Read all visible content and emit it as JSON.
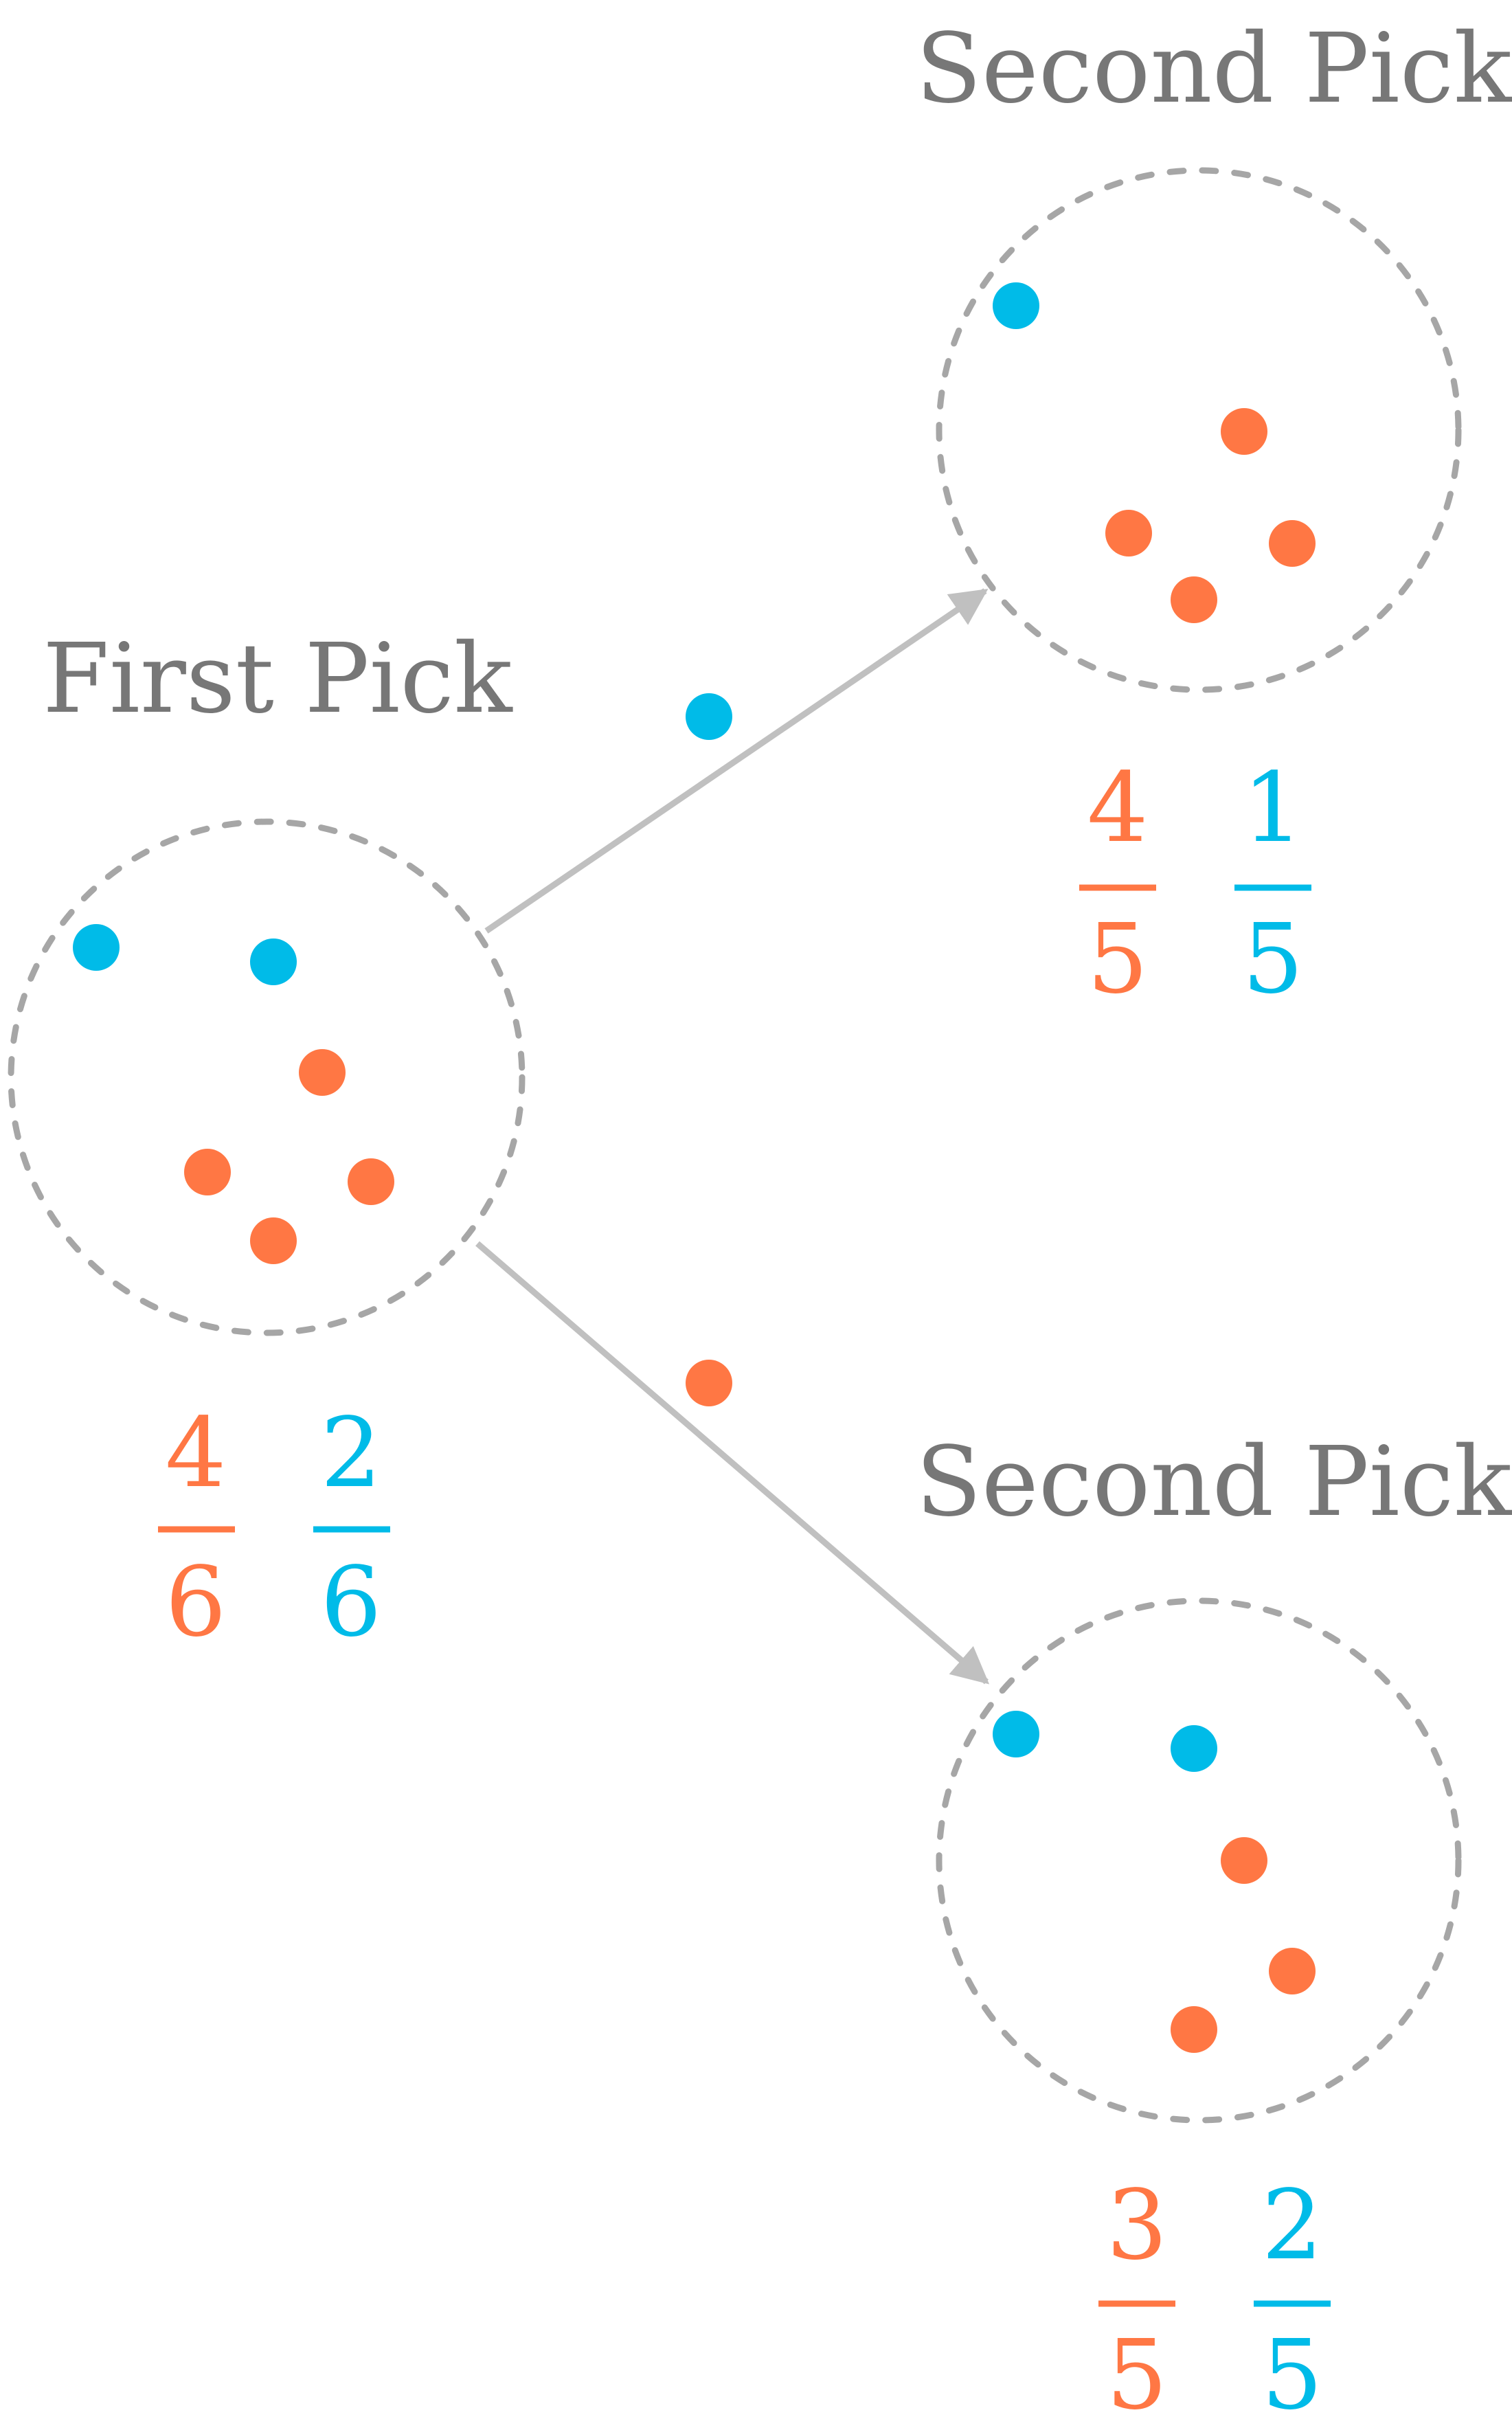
{
  "colors": {
    "orange": "#ff7744",
    "blue": "#00bbe8",
    "outline": "#a6a6a6",
    "arrow": "#c0c0c0",
    "label": "#777777"
  },
  "first_pick": {
    "label": "First Pick",
    "ball_colors": [
      "blue",
      "blue",
      "orange",
      "orange",
      "orange",
      "orange"
    ],
    "orange_fraction": {
      "numerator": "4",
      "denominator": "6"
    },
    "blue_fraction": {
      "numerator": "2",
      "denominator": "6"
    }
  },
  "upper_branch": {
    "drawn_ball": "blue",
    "label": "Second Pick",
    "ball_colors": [
      "blue",
      "orange",
      "orange",
      "orange",
      "orange"
    ],
    "orange_fraction": {
      "numerator": "4",
      "denominator": "5"
    },
    "blue_fraction": {
      "numerator": "1",
      "denominator": "5"
    }
  },
  "lower_branch": {
    "drawn_ball": "orange",
    "label": "Second Pick",
    "ball_colors": [
      "blue",
      "blue",
      "orange",
      "orange",
      "orange"
    ],
    "orange_fraction": {
      "numerator": "3",
      "denominator": "5"
    },
    "blue_fraction": {
      "numerator": "2",
      "denominator": "5"
    }
  }
}
